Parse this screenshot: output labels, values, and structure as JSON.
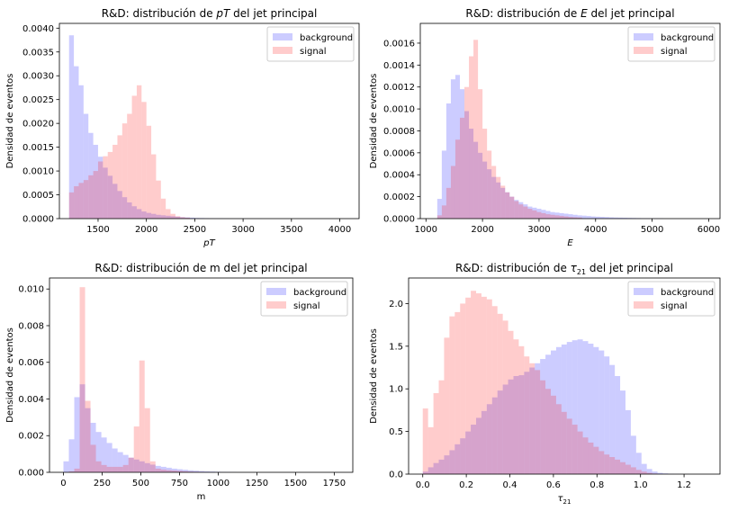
{
  "colors": {
    "background": "#0000ff",
    "signal": "#ff0000",
    "opacity": 0.2
  },
  "chart_data": [
    {
      "type": "bar",
      "title_pre": "R&D: distribución de ",
      "title_sym": "pT",
      "title_post": " del jet principal",
      "xlabel": "pT",
      "ylabel": "Densidad de eventos",
      "xlim": [
        1100,
        4200
      ],
      "ylim": [
        0,
        0.0041
      ],
      "xticks": [
        1500,
        2000,
        2500,
        3000,
        3500,
        4000
      ],
      "yticks": [
        0.0,
        0.0005,
        0.001,
        0.0015,
        0.002,
        0.0025,
        0.003,
        0.0035,
        0.004
      ],
      "ytick_labels": [
        "0.0000",
        "0.0005",
        "0.0010",
        "0.0015",
        "0.0020",
        "0.0025",
        "0.0030",
        "0.0035",
        "0.0040"
      ],
      "xtick_labels": [
        "1500",
        "2000",
        "2500",
        "3000",
        "3500",
        "4000"
      ],
      "legend": [
        "background",
        "signal"
      ],
      "legend_loc": "upper right",
      "bin_start": 1200,
      "bin_width": 50,
      "series": [
        {
          "name": "background",
          "values": [
            0.00385,
            0.0032,
            0.0028,
            0.0022,
            0.0018,
            0.00155,
            0.0013,
            0.00107,
            0.0009,
            0.00073,
            0.00058,
            0.00045,
            0.00034,
            0.00026,
            0.0002,
            0.00015,
            0.00012,
            0.0001,
            8e-05,
            7e-05,
            6e-05,
            5e-05,
            4e-05,
            3e-05,
            2.5e-05,
            2e-05,
            1.5e-05,
            1.2e-05,
            1e-05,
            8e-06,
            6e-06,
            5e-06,
            4e-06,
            3e-06,
            3e-06,
            2e-06,
            2e-06,
            1e-06,
            1e-06,
            1e-06
          ]
        },
        {
          "name": "signal",
          "values": [
            0.00055,
            0.00068,
            0.00075,
            0.00081,
            0.00091,
            0.001,
            0.0012,
            0.00131,
            0.0014,
            0.00155,
            0.00175,
            0.002,
            0.0022,
            0.00258,
            0.0028,
            0.00245,
            0.00195,
            0.00135,
            0.0008,
            0.00042,
            0.0002,
            0.0001,
            5e-05,
            3e-05,
            2e-05
          ]
        }
      ]
    },
    {
      "type": "bar",
      "title_pre": "R&D: distribución de ",
      "title_sym": "E",
      "title_post": " del jet principal",
      "xlabel": "E",
      "ylabel": "Densidad de eventos",
      "xlim": [
        900,
        6200
      ],
      "ylim": [
        0,
        0.00178
      ],
      "xticks": [
        1000,
        2000,
        3000,
        4000,
        5000,
        6000
      ],
      "xtick_labels": [
        "1000",
        "2000",
        "3000",
        "4000",
        "5000",
        "6000"
      ],
      "yticks": [
        0,
        0.0002,
        0.0004,
        0.0006,
        0.0008,
        0.001,
        0.0012,
        0.0014,
        0.0016
      ],
      "ytick_labels": [
        "0.0000",
        "0.0002",
        "0.0004",
        "0.0006",
        "0.0008",
        "0.0010",
        "0.0012",
        "0.0014",
        "0.0016"
      ],
      "legend": [
        "background",
        "signal"
      ],
      "legend_loc": "upper right",
      "bin_start": 1200,
      "bin_width": 80,
      "series": [
        {
          "name": "background",
          "values": [
            0.00018,
            0.00062,
            0.00105,
            0.00127,
            0.00131,
            0.00118,
            0.00098,
            0.00082,
            0.0007,
            0.0006,
            0.00052,
            0.00045,
            0.00038,
            0.00033,
            0.00028,
            0.00024,
            0.0002,
            0.00017,
            0.00015,
            0.00013,
            0.00011,
            0.0001,
            9e-05,
            8e-05,
            7e-05,
            6e-05,
            5.5e-05,
            5e-05,
            4.5e-05,
            4e-05,
            3.5e-05,
            3e-05,
            2.7e-05,
            2.4e-05,
            2e-05,
            1.8e-05,
            1.6e-05,
            1.4e-05,
            1.2e-05,
            1e-05,
            9e-06,
            8e-06,
            7e-06,
            6e-06,
            5e-06,
            4e-06,
            4e-06,
            3e-06,
            3e-06,
            2e-06
          ]
        },
        {
          "name": "signal",
          "values": [
            3e-05,
            0.00012,
            0.00028,
            0.00048,
            0.00072,
            0.00092,
            0.0012,
            0.00148,
            0.00163,
            0.00118,
            0.00082,
            0.00062,
            0.00048,
            0.00038,
            0.0003,
            0.00024,
            0.0002,
            0.00016,
            0.00013,
            0.00011,
            9e-05,
            7.5e-05,
            6e-05,
            5e-05,
            4e-05,
            3.5e-05,
            3e-05,
            2.5e-05,
            2e-05,
            1.5e-05,
            1.2e-05,
            1e-05
          ]
        }
      ]
    },
    {
      "type": "bar",
      "title_pre": "R&D: distribución de m del jet principal",
      "title_sym": "",
      "title_post": "",
      "xlabel": "m",
      "ylabel": "Densidad de eventos",
      "xlim": [
        -90,
        1870
      ],
      "ylim": [
        0,
        0.0106
      ],
      "xticks": [
        0,
        250,
        500,
        750,
        1000,
        1250,
        1500,
        1750
      ],
      "xtick_labels": [
        "0",
        "250",
        "500",
        "750",
        "1000",
        "1250",
        "1500",
        "1750"
      ],
      "yticks": [
        0,
        0.002,
        0.004,
        0.006,
        0.008,
        0.01
      ],
      "ytick_labels": [
        "0.000",
        "0.002",
        "0.004",
        "0.006",
        "0.008",
        "0.010"
      ],
      "legend": [
        "background",
        "signal"
      ],
      "legend_loc": "upper right",
      "bin_start": 0,
      "bin_width": 35,
      "series": [
        {
          "name": "background",
          "values": [
            0.0006,
            0.0018,
            0.0041,
            0.0048,
            0.0035,
            0.0027,
            0.0022,
            0.0019,
            0.0016,
            0.0013,
            0.0011,
            0.00095,
            0.0008,
            0.0007,
            0.0006,
            0.0005,
            0.00042,
            0.00035,
            0.0003,
            0.00025,
            0.0002,
            0.00017,
            0.00014,
            0.00011,
            9e-05,
            7e-05,
            5e-05,
            4e-05,
            3e-05,
            2e-05,
            1.5e-05,
            1e-05
          ]
        },
        {
          "name": "signal",
          "values": [
            0,
            5e-05,
            0.0002,
            0.0101,
            0.0039,
            0.0015,
            0.0006,
            0.0004,
            0.0003,
            0.0003,
            0.0003,
            0.0004,
            0.0008,
            0.0025,
            0.0061,
            0.0035,
            0.0006,
            0.0002,
            0.00015,
            0.00012,
            0.0001,
            8e-05,
            6e-05,
            4e-05,
            3e-05,
            2e-05,
            1e-05
          ]
        }
      ]
    },
    {
      "type": "bar",
      "title_pre": "R&D: distribución de ",
      "title_sym": "τ",
      "title_sub": "21",
      "title_post": " del jet principal",
      "xlabel": "τ",
      "xlabel_sub": "21",
      "ylabel": "Densidad de eventos",
      "xlim": [
        -0.065,
        1.365
      ],
      "ylim": [
        0,
        2.3
      ],
      "xticks": [
        0.0,
        0.2,
        0.4,
        0.6,
        0.8,
        1.0,
        1.2
      ],
      "xtick_labels": [
        "0.0",
        "0.2",
        "0.4",
        "0.6",
        "0.8",
        "1.0",
        "1.2"
      ],
      "yticks": [
        0,
        0.5,
        1.0,
        1.5,
        2.0
      ],
      "ytick_labels": [
        "0.0",
        "0.5",
        "1.0",
        "1.5",
        "2.0"
      ],
      "legend": [
        "background",
        "signal"
      ],
      "legend_loc": "upper right",
      "bin_start": 0,
      "bin_width": 0.0245,
      "series": [
        {
          "name": "background",
          "values": [
            0.03,
            0.08,
            0.13,
            0.17,
            0.22,
            0.28,
            0.35,
            0.42,
            0.5,
            0.58,
            0.66,
            0.74,
            0.82,
            0.9,
            0.98,
            1.05,
            1.11,
            1.15,
            1.16,
            1.2,
            1.25,
            1.3,
            1.35,
            1.4,
            1.45,
            1.49,
            1.52,
            1.55,
            1.57,
            1.58,
            1.56,
            1.53,
            1.49,
            1.45,
            1.38,
            1.28,
            1.15,
            0.98,
            0.75,
            0.45,
            0.25,
            0.12,
            0.06,
            0.03,
            0.015,
            0.008,
            0.004,
            0.002,
            0.001,
            0.0005
          ]
        },
        {
          "name": "signal",
          "values": [
            0.77,
            0.55,
            0.95,
            1.1,
            1.6,
            1.85,
            1.9,
            2.0,
            2.07,
            2.15,
            2.12,
            2.08,
            2.05,
            1.97,
            1.88,
            1.8,
            1.68,
            1.58,
            1.5,
            1.38,
            1.3,
            1.22,
            1.1,
            1.0,
            0.92,
            0.82,
            0.73,
            0.65,
            0.58,
            0.5,
            0.43,
            0.37,
            0.32,
            0.27,
            0.23,
            0.2,
            0.17,
            0.14,
            0.11,
            0.08,
            0.05,
            0.03,
            0.015,
            0.007
          ]
        }
      ]
    }
  ]
}
